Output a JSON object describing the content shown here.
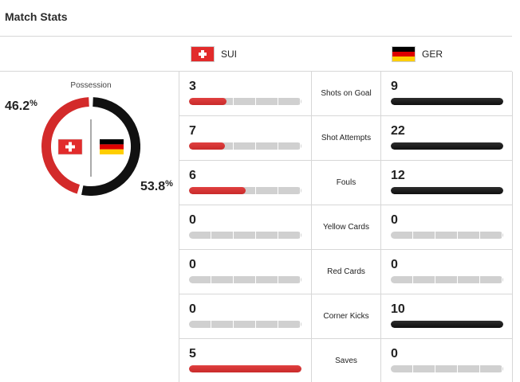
{
  "title": "Match Stats",
  "teams": {
    "home": {
      "abbr": "SUI",
      "flag": "switzerland-flag",
      "color": "#d32a2a"
    },
    "away": {
      "abbr": "GER",
      "flag": "germany-flag",
      "color": "#111111"
    }
  },
  "possession": {
    "label": "Possession",
    "home_pct": "46.2",
    "away_pct": "53.8",
    "suffix": "%",
    "home_fraction": 0.462,
    "away_fraction": 0.538
  },
  "stats": [
    {
      "label": "Shots on Goal",
      "home": "3",
      "away": "9",
      "home_fill": 0.333,
      "away_fill": 1.0
    },
    {
      "label": "Shot Attempts",
      "home": "7",
      "away": "22",
      "home_fill": 0.318,
      "away_fill": 1.0
    },
    {
      "label": "Fouls",
      "home": "6",
      "away": "12",
      "home_fill": 0.5,
      "away_fill": 1.0
    },
    {
      "label": "Yellow Cards",
      "home": "0",
      "away": "0",
      "home_fill": 0,
      "away_fill": 0
    },
    {
      "label": "Red Cards",
      "home": "0",
      "away": "0",
      "home_fill": 0,
      "away_fill": 0
    },
    {
      "label": "Corner Kicks",
      "home": "0",
      "away": "10",
      "home_fill": 0,
      "away_fill": 1.0
    },
    {
      "label": "Saves",
      "home": "5",
      "away": "0",
      "home_fill": 1.0,
      "away_fill": 0
    }
  ]
}
